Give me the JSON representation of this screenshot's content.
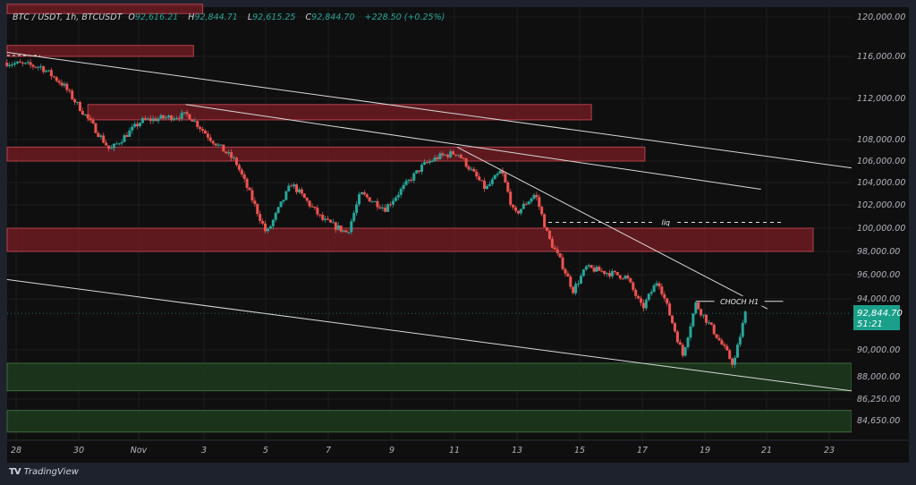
{
  "legend": {
    "symbol": "BTC / USDT, 1h, BTCUSDT",
    "open_label": "O",
    "open": "92,616.21",
    "high_label": "H",
    "high": "92,844.71",
    "low_label": "L",
    "low": "92,615.25",
    "close_label": "C",
    "close": "92,844.70",
    "change": "+228.50 (+0.25%)"
  },
  "price_badge": {
    "price": "92,844.70",
    "countdown": "51:21"
  },
  "branding": {
    "logo_text": "TradingView",
    "logo_mark": "TV"
  },
  "colors": {
    "up": "#26a69a",
    "down": "#ef5350",
    "supply_zone": "#7a1e26",
    "demand_zone": "#1d3a1d",
    "trendline": "#d8d8d8"
  },
  "chart_data": {
    "type": "candlestick",
    "title": "",
    "interval": "1h",
    "y_scale": "log",
    "grid": true,
    "y_ticks": [
      "120,000.00",
      "116,000.00",
      "112,000.00",
      "108,000.00",
      "106,000.00",
      "104,000.00",
      "102,000.00",
      "100,000.00",
      "98,000.00",
      "96,000.00",
      "94,000.00",
      "90,000.00",
      "88,000.00",
      "86,250.00",
      "84,650.00"
    ],
    "x_ticks": [
      "28",
      "30",
      "Nov",
      "3",
      "5",
      "7",
      "9",
      "11",
      "13",
      "15",
      "17",
      "19",
      "21",
      "23"
    ],
    "price_path": [
      [
        "10-27 17:00",
        115400
      ],
      [
        "10-28 19:00",
        115000
      ],
      [
        "10-29 12:00",
        113300
      ],
      [
        "10-30 07:00",
        110000
      ],
      [
        "10-31 00:00",
        107000
      ],
      [
        "11-01 00:00",
        109800
      ],
      [
        "11-02 12:00",
        110400
      ],
      [
        "11-03 05:00",
        108100
      ],
      [
        "11-04 00:00",
        106000
      ],
      [
        "11-05 00:00",
        99500
      ],
      [
        "11-05 19:00",
        103900
      ],
      [
        "11-06 19:00",
        100700
      ],
      [
        "11-07 14:00",
        99600
      ],
      [
        "11-08 00:00",
        103000
      ],
      [
        "11-08 19:00",
        101700
      ],
      [
        "11-10 00:00",
        105600
      ],
      [
        "11-10 12:00",
        106400
      ],
      [
        "11-11 02:00",
        106800
      ],
      [
        "11-12 00:00",
        103400
      ],
      [
        "11-12 12:00",
        105100
      ],
      [
        "11-12 22:00",
        101100
      ],
      [
        "11-13 14:00",
        103000
      ],
      [
        "11-14 00:00",
        99200
      ],
      [
        "11-14 10:00",
        97000
      ],
      [
        "11-14 19:00",
        94700
      ],
      [
        "11-15 05:00",
        96600
      ],
      [
        "11-16 12:00",
        95800
      ],
      [
        "11-17 00:00",
        93200
      ],
      [
        "11-17 12:00",
        95600
      ],
      [
        "11-18 07:00",
        89600
      ],
      [
        "11-18 17:00",
        93600
      ],
      [
        "11-19 07:00",
        91400
      ],
      [
        "11-19 22:00",
        88900
      ],
      [
        "11-20 07:00",
        92844.7
      ]
    ],
    "zones": [
      {
        "kind": "supply",
        "from": "10-27 17:00",
        "to": "11-02 23:00",
        "high": 121500,
        "low": 120400
      },
      {
        "kind": "supply",
        "from": "10-27 17:00",
        "to": "11-02 16:00",
        "high": 117100,
        "low": 116000
      },
      {
        "kind": "supply",
        "from": "10-30 07:00",
        "to": "11-15 09:00",
        "high": 111400,
        "low": 109900
      },
      {
        "kind": "supply",
        "from": "10-27 17:00",
        "to": "11-17 02:00",
        "high": 107300,
        "low": 106000
      },
      {
        "kind": "supply",
        "from": "10-27 17:00",
        "to": "11-22 11:00",
        "high": 100000,
        "low": 98000
      },
      {
        "kind": "demand",
        "from": "10-27 17:00",
        "to": "11-24 14:00",
        "high": 89000,
        "low": 86900
      },
      {
        "kind": "demand",
        "from": "10-27 17:00",
        "to": "11-24 14:00",
        "high": 85400,
        "low": 83800
      }
    ],
    "trendlines": [
      {
        "from": [
          "10-27 17:00",
          116400
        ],
        "to": [
          "11-24 14:00",
          105000
        ]
      },
      {
        "from": [
          "11-02 10:00",
          111400
        ],
        "to": [
          "11-20 19:00",
          103400
        ]
      },
      {
        "from": [
          "11-11 02:00",
          107300
        ],
        "to": [
          "11-21 00:00",
          93200
        ]
      },
      {
        "from": [
          "10-27 17:00",
          95600
        ],
        "to": [
          "11-24 14:00",
          86600
        ]
      }
    ],
    "annotations": [
      {
        "text": "liq",
        "style": "dashed",
        "price": 100500,
        "from": "11-14 00:00",
        "to": "11-21 12:00"
      },
      {
        "text": "CHOCH H1",
        "style": "solid",
        "price": 93800,
        "from": "11-18 17:00",
        "to": "11-21 12:00"
      }
    ]
  }
}
